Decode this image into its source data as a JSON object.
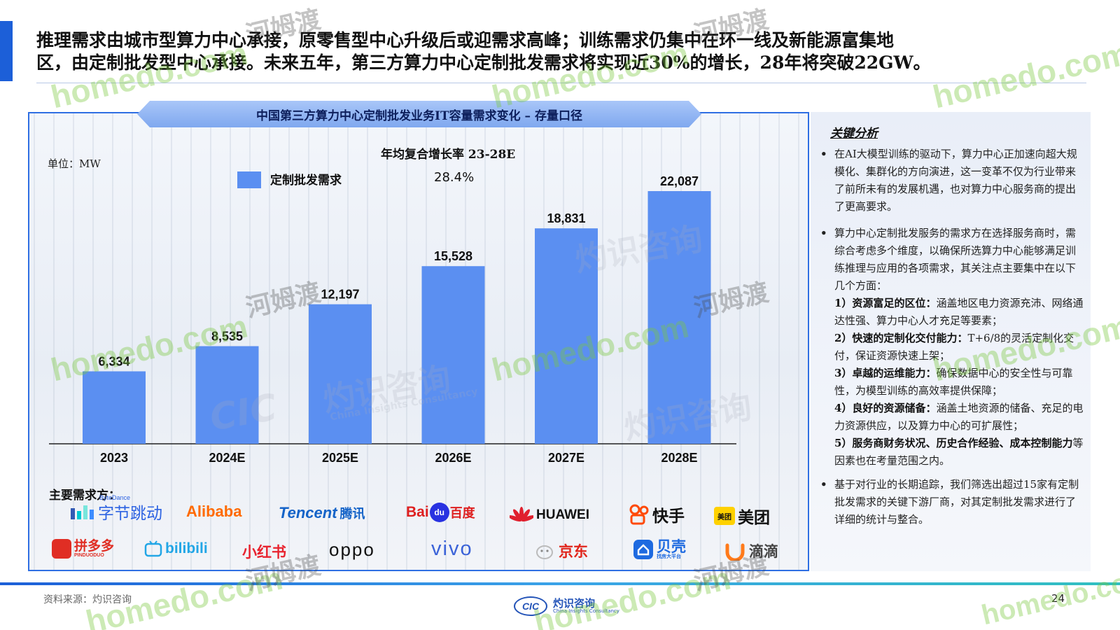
{
  "headline": {
    "line1": "推理需求由城市型算力中心承接，原零售型中心升级后或迎需求高峰；训练需求仍集中在环一线及新能源富集地",
    "line2": "区，由定制批发型中心承接。未来五年，第三方算力中心定制批发需求将实现近30%的增长，28年将突破22GW。"
  },
  "chart_data": {
    "type": "bar",
    "title": "中国第三方算力中心定制批发业务IT容量需求变化 – 存量口径",
    "unit_label": "单位：MW",
    "categories": [
      "2023",
      "2024E",
      "2025E",
      "2026E",
      "2027E",
      "2028E"
    ],
    "series": [
      {
        "name": "定制批发需求",
        "values": [
          6334,
          8535,
          12197,
          15528,
          18831,
          22087
        ],
        "color": "#5b8ff1"
      }
    ],
    "data_labels": [
      "6,334",
      "8,535",
      "12,197",
      "15,528",
      "18,831",
      "22,087"
    ],
    "ylim": [
      0,
      27000
    ],
    "cagr": {
      "label": "年均复合增长率 23-28E",
      "value": "28.4%"
    },
    "legend_placement": "top-left",
    "grid": false
  },
  "buyers": {
    "title": "主要需求方：",
    "logos": [
      {
        "name": "字节跳动",
        "sup": "ByteDance",
        "color": "#2d63e2",
        "icon": "bytedance-logo-icon"
      },
      {
        "name": "Alibaba",
        "color": "#ff6a00",
        "icon": "alibaba-logo-icon"
      },
      {
        "name": "Tencent",
        "cn": "腾讯",
        "color": "#1463c8",
        "icon": "tencent-logo-icon"
      },
      {
        "name": "Bai",
        "mid": "du",
        "cn": "百度",
        "color": "#de1f1f",
        "icon": "baidu-logo-icon"
      },
      {
        "name": "HUAWEI",
        "color": "#111111",
        "icon": "huawei-logo-icon"
      },
      {
        "name": "快手",
        "color": "#111111",
        "icon": "kuaishou-logo-icon"
      },
      {
        "name": "美团",
        "badge": "美团",
        "color": "#111111",
        "icon": "meituan-logo-icon"
      },
      {
        "name": "拼多多",
        "sub": "PINDUODUO",
        "color": "#e02e24",
        "icon": "pinduoduo-logo-icon"
      },
      {
        "name": "bilibili",
        "color": "#22a6e6",
        "icon": "bilibili-logo-icon"
      },
      {
        "name": "小红书",
        "color": "#e8232f",
        "icon": "xiaohongshu-logo-icon"
      },
      {
        "name": "oppo",
        "color": "#111111",
        "icon": "oppo-logo-icon"
      },
      {
        "name": "vivo",
        "color": "#3b63d8",
        "icon": "vivo-logo-icon"
      },
      {
        "name": "京东",
        "color": "#e1251b",
        "icon": "jd-logo-icon"
      },
      {
        "name": "贝壳",
        "sub": "找房大平台",
        "color": "#1e6ae0",
        "icon": "beike-logo-icon"
      },
      {
        "name": "滴滴",
        "color": "#444444",
        "icon": "didi-logo-icon"
      }
    ]
  },
  "panel": {
    "title": "关键分析",
    "bullet1": "在AI大模型训练的驱动下，算力中心正加速向超大规模化、集群化的方向演进，这一变革不仅为行业带来了前所未有的发展机遇，也对算力中心服务商的提出了更高要求。",
    "bullet2_intro": "算力中心定制批发服务的需求方在选择服务商时，需综合考虑多个维度，以确保所选算力中心能够满足训练推理与应用的各项需求，其关注点主要集中在以下几个方面：",
    "items": [
      {
        "head": "1）资源富足的区位：",
        "body": "涵盖地区电力资源充沛、网络通达性强、算力中心人才充足等要素；"
      },
      {
        "head": "2）快速的定制化交付能力：",
        "body": "T+6/8的灵活定制化交付，保证资源快速上架；"
      },
      {
        "head": "3）卓越的运维能力：",
        "body": "确保数据中心的安全性与可靠性，为模型训练的高效率提供保障；"
      },
      {
        "head": "4）良好的资源储备：",
        "body": "涵盖土地资源的储备、充足的电力资源供应，以及算力中心的可扩展性；"
      },
      {
        "head": "5）服务商财务状况、历史合作经验、成本控制能力",
        "body": "等因素也在考量范围之内。"
      }
    ],
    "bullet3": "基于对行业的长期追踪，我们筛选出超过15家有定制批发需求的关键下游厂商，对其定制批发需求进行了详细的统计与整合。"
  },
  "footer": {
    "source": "资料来源：灼识咨询",
    "page": "24",
    "logo_mark": "CIC",
    "logo_cn": "灼识咨询",
    "logo_en": "China Insights Consultancy"
  },
  "watermarks": {
    "site": "homedo.com",
    "cn": "河姆渡",
    "brand": "灼识咨询",
    "brand_en": "China Insights Consultancy",
    "cic": "CIC"
  }
}
